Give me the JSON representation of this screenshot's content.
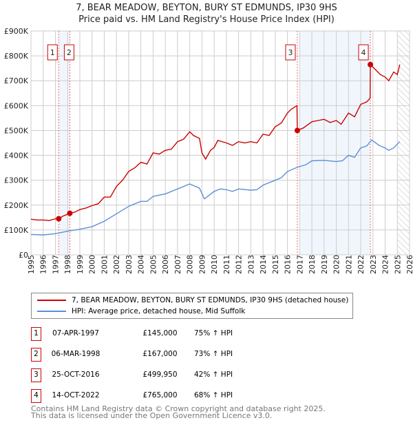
{
  "chart_data": {
    "type": "line",
    "title": "7, BEAR MEADOW, BEYTON, BURY ST EDMUNDS, IP30 9HS",
    "subtitle": "Price paid vs. HM Land Registry's House Price Index (HPI)",
    "xlim": [
      1995,
      2026
    ],
    "ylim": [
      0,
      900000
    ],
    "x_ticks": [
      "1995",
      "1996",
      "1997",
      "1998",
      "1999",
      "2000",
      "2001",
      "2002",
      "2003",
      "2004",
      "2005",
      "2006",
      "2007",
      "2008",
      "2009",
      "2010",
      "2011",
      "2012",
      "2013",
      "2014",
      "2015",
      "2016",
      "2017",
      "2018",
      "2019",
      "2020",
      "2021",
      "2022",
      "2023",
      "2024",
      "2025",
      "2026"
    ],
    "y_ticks": [
      {
        "v": 0,
        "label": "£0"
      },
      {
        "v": 100000,
        "label": "£100K"
      },
      {
        "v": 200000,
        "label": "£200K"
      },
      {
        "v": 300000,
        "label": "£300K"
      },
      {
        "v": 400000,
        "label": "£400K"
      },
      {
        "v": 500000,
        "label": "£500K"
      },
      {
        "v": 600000,
        "label": "£600K"
      },
      {
        "v": 700000,
        "label": "£700K"
      },
      {
        "v": 800000,
        "label": "£800K"
      },
      {
        "v": 900000,
        "label": "£900K"
      }
    ],
    "grid": true,
    "series": [
      {
        "name": "7, BEAR MEADOW, BEYTON, BURY ST EDMUNDS, IP30 9HS (detached house)",
        "color": "#cc0000",
        "x": [
          1995,
          1995.5,
          1996,
          1996.5,
          1997,
          1997.27,
          1997.6,
          1998.18,
          1998.6,
          1999,
          1999.5,
          2000,
          2000.5,
          2001,
          2001.5,
          2002,
          2002.5,
          2003,
          2003.5,
          2004,
          2004.5,
          2005,
          2005.5,
          2006,
          2006.5,
          2007,
          2007.5,
          2008,
          2008.3,
          2008.8,
          2009,
          2009.3,
          2009.7,
          2010,
          2010.3,
          2011,
          2011.5,
          2012,
          2012.5,
          2013,
          2013.5,
          2014,
          2014.5,
          2015,
          2015.5,
          2016,
          2016.3,
          2016.78,
          2016.81,
          2017.3,
          2018,
          2018.5,
          2019,
          2019.5,
          2020,
          2020.4,
          2021,
          2021.5,
          2022,
          2022.5,
          2022.77,
          2022.79,
          2023.3,
          2023.6,
          2024,
          2024.3,
          2024.7,
          2025,
          2025.2
        ],
        "y": [
          143000,
          140000,
          140000,
          138000,
          145000,
          145000,
          155000,
          167000,
          172000,
          182000,
          188000,
          198000,
          205000,
          232000,
          232000,
          275000,
          300000,
          335000,
          350000,
          372000,
          365000,
          410000,
          405000,
          420000,
          425000,
          455000,
          465000,
          495000,
          480000,
          468000,
          410000,
          385000,
          420000,
          432000,
          460000,
          450000,
          440000,
          455000,
          450000,
          455000,
          450000,
          485000,
          480000,
          515000,
          530000,
          570000,
          585000,
          600000,
          500000,
          510000,
          535000,
          540000,
          545000,
          532000,
          540000,
          525000,
          570000,
          555000,
          605000,
          615000,
          630000,
          765000,
          740000,
          725000,
          715000,
          700000,
          735000,
          725000,
          765000
        ]
      },
      {
        "name": "HPI: Average price, detached house, Mid Suffolk",
        "color": "#5b8fd6",
        "x": [
          1995,
          1996,
          1997,
          1998,
          1999,
          2000,
          2001,
          2002,
          2003,
          2004,
          2004.5,
          2005,
          2006,
          2007,
          2008,
          2008.8,
          2009.2,
          2010,
          2010.5,
          2011,
          2011.5,
          2012,
          2013,
          2013.5,
          2014,
          2015,
          2015.5,
          2016,
          2016.8,
          2017.5,
          2018,
          2019,
          2020,
          2020.5,
          2021,
          2021.5,
          2022,
          2022.5,
          2022.9,
          2023.5,
          2024,
          2024.3,
          2024.7,
          2025,
          2025.2
        ],
        "y": [
          82000,
          80000,
          85000,
          95000,
          103000,
          113000,
          135000,
          165000,
          195000,
          215000,
          215000,
          235000,
          245000,
          265000,
          285000,
          268000,
          225000,
          255000,
          265000,
          262000,
          255000,
          265000,
          260000,
          262000,
          280000,
          300000,
          310000,
          335000,
          352000,
          362000,
          378000,
          380000,
          375000,
          378000,
          400000,
          392000,
          430000,
          438000,
          462000,
          440000,
          430000,
          420000,
          430000,
          445000,
          455000
        ]
      }
    ],
    "sales": [
      {
        "label": "1",
        "x": 1997.27,
        "y": 145000
      },
      {
        "label": "2",
        "x": 1998.18,
        "y": 167000
      },
      {
        "label": "3",
        "x": 2016.81,
        "y": 499950
      },
      {
        "label": "4",
        "x": 2022.79,
        "y": 765000
      }
    ],
    "shaded": [
      [
        1997.27,
        1998.18
      ],
      [
        2017.0,
        2022.79
      ]
    ],
    "hatched_from": 2025.0
  },
  "legend": {
    "red": "7, BEAR MEADOW, BEYTON, BURY ST EDMUNDS, IP30 9HS (detached house)",
    "blue": "HPI: Average price, detached house, Mid Suffolk"
  },
  "table": [
    {
      "n": "1",
      "date": "07-APR-1997",
      "price": "£145,000",
      "hpi": "75% ↑ HPI"
    },
    {
      "n": "2",
      "date": "06-MAR-1998",
      "price": "£167,000",
      "hpi": "73% ↑ HPI"
    },
    {
      "n": "3",
      "date": "25-OCT-2016",
      "price": "£499,950",
      "hpi": "42% ↑ HPI"
    },
    {
      "n": "4",
      "date": "14-OCT-2022",
      "price": "£765,000",
      "hpi": "68% ↑ HPI"
    }
  ],
  "footer": {
    "line1": "Contains HM Land Registry data © Crown copyright and database right 2025.",
    "line2": "This data is licensed under the Open Government Licence v3.0."
  }
}
